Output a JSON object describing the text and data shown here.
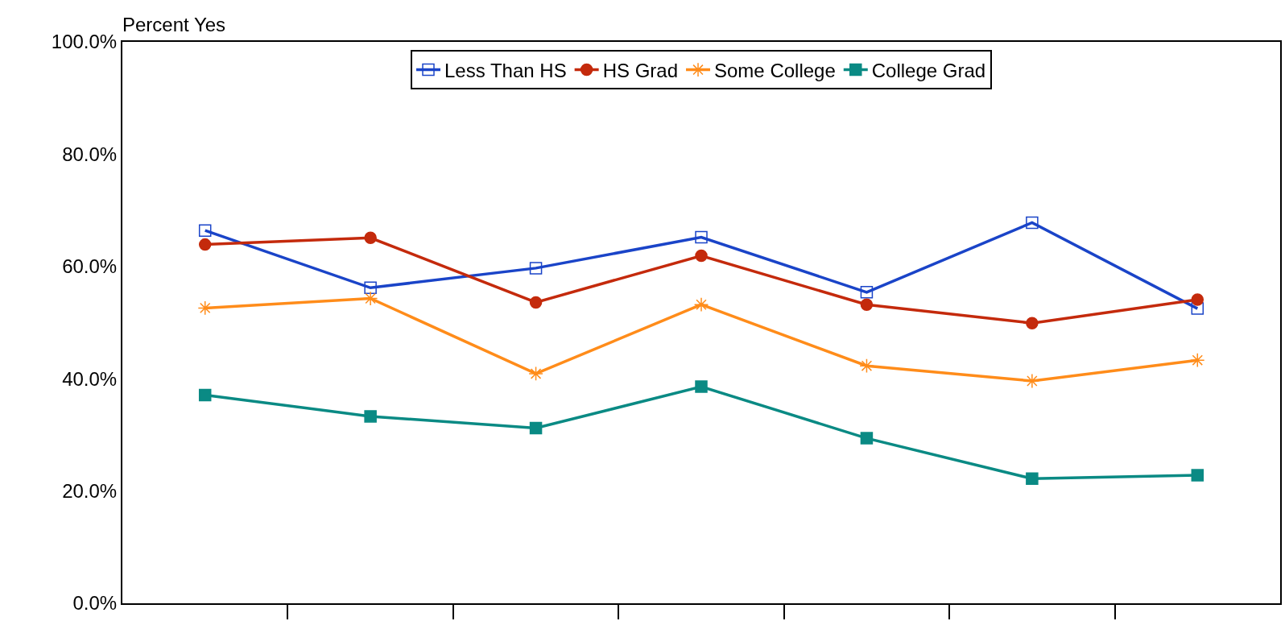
{
  "chart_data": {
    "type": "line",
    "ylabel": "Percent Yes",
    "categories": [
      null,
      null,
      null,
      null,
      null,
      null,
      null
    ],
    "ylim": [
      0,
      100
    ],
    "yticks": [
      {
        "value": 0,
        "label": "0.0%"
      },
      {
        "value": 20,
        "label": "20.0%"
      },
      {
        "value": 40,
        "label": "40.0%"
      },
      {
        "value": 60,
        "label": "60.0%"
      },
      {
        "value": 80,
        "label": "80.0%"
      },
      {
        "value": 100,
        "label": "100.0%"
      }
    ],
    "legend": "top",
    "line_style": "solid",
    "series": [
      {
        "name": "Less Than HS",
        "color": "#1a44c8",
        "marker": "square-open",
        "values": [
          66.4,
          56.2,
          59.7,
          65.2,
          55.4,
          67.8,
          52.5
        ]
      },
      {
        "name": "HS Grad",
        "color": "#c42a0c",
        "marker": "circle",
        "values": [
          63.9,
          65.1,
          53.6,
          61.9,
          53.2,
          49.9,
          54.1
        ]
      },
      {
        "name": "Some College",
        "color": "#ff8c1a",
        "marker": "cross",
        "values": [
          52.6,
          54.3,
          40.9,
          53.2,
          42.3,
          39.6,
          43.3
        ]
      },
      {
        "name": "College Grad",
        "color": "#0a8a84",
        "marker": "square",
        "values": [
          37.1,
          33.3,
          31.2,
          38.6,
          29.4,
          22.2,
          22.8
        ]
      }
    ]
  }
}
